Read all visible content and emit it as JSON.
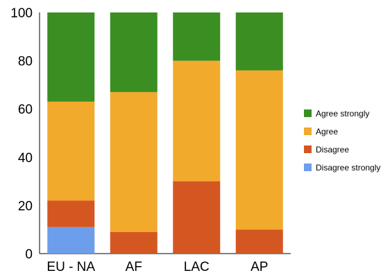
{
  "chart_data": {
    "type": "bar",
    "stacked": true,
    "title": "",
    "xlabel": "",
    "ylabel": "",
    "ylim": [
      0,
      100
    ],
    "yticks": [
      0,
      20,
      40,
      60,
      80,
      100
    ],
    "categories": [
      "EU - NA",
      "AF",
      "LAC",
      "AP"
    ],
    "series": [
      {
        "name": "Disagree strongly",
        "color": "#6d9eeb",
        "values": [
          11,
          0,
          0,
          0
        ]
      },
      {
        "name": "Disagree",
        "color": "#d45722",
        "values": [
          11,
          9,
          30,
          10
        ]
      },
      {
        "name": "Agree",
        "color": "#f2aa2d",
        "values": [
          41,
          58,
          50,
          66
        ]
      },
      {
        "name": "Agree strongly",
        "color": "#3b8e22",
        "values": [
          37,
          33,
          20,
          24
        ]
      }
    ],
    "legend": {
      "position": "right",
      "order": [
        "Agree strongly",
        "Agree",
        "Disagree",
        "Disagree strongly"
      ]
    },
    "grid": false
  }
}
